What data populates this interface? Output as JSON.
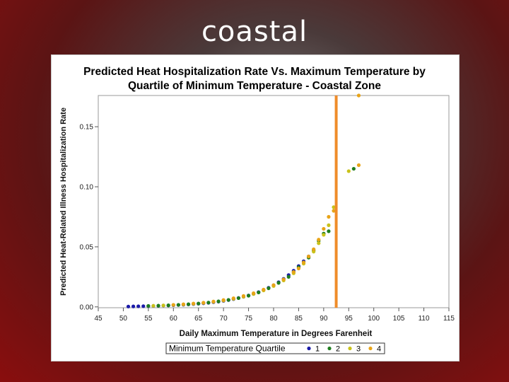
{
  "slide": {
    "title": "coastal"
  },
  "chart_data": {
    "type": "scatter",
    "title": "Predicted Heat Hospitalization Rate Vs. Maximum Temperature by Quartile of Minimum Temperature - Coastal Zone",
    "title_lines": [
      "Predicted Heat Hospitalization Rate Vs. Maximum Temperature by",
      "Quartile of Minimum Temperature - Coastal Zone"
    ],
    "xlabel": "Daily Maximum Temperature in Degrees Farenheit",
    "ylabel": "Predicted Heat-Related Illness Hospitalization Rate",
    "xlim": [
      45,
      115
    ],
    "ylim": [
      -0.0007,
      0.176
    ],
    "xticks": [
      45,
      50,
      55,
      60,
      65,
      70,
      75,
      80,
      85,
      90,
      95,
      100,
      105,
      110,
      115
    ],
    "yticks": [
      0.0,
      0.05,
      0.1,
      0.15
    ],
    "ytick_labels": [
      "0.00",
      "0.05",
      "0.10",
      "0.15"
    ],
    "reference_line": {
      "x": 92.5,
      "color": "#ef8c2a"
    },
    "legend": {
      "title": "Minimum Temperature Quartile",
      "position": "bottom"
    },
    "colors": {
      "1": "#1a1aa8",
      "2": "#1e7d1e",
      "3": "#c9c21a",
      "4": "#e8a418"
    },
    "series": [
      {
        "name": "1",
        "color": "#1a1aa8",
        "points": [
          [
            51,
            0.0003
          ],
          [
            52,
            0.0004
          ],
          [
            53,
            0.0005
          ],
          [
            54,
            0.0006
          ],
          [
            55,
            0.0007
          ],
          [
            56,
            0.0008
          ],
          [
            57,
            0.0009
          ],
          [
            58,
            0.0011
          ],
          [
            59,
            0.0012
          ],
          [
            60,
            0.0014
          ],
          [
            61,
            0.0016
          ],
          [
            62,
            0.0018
          ],
          [
            63,
            0.0021
          ],
          [
            64,
            0.0024
          ],
          [
            65,
            0.0027
          ],
          [
            66,
            0.003
          ],
          [
            67,
            0.0034
          ],
          [
            68,
            0.0039
          ],
          [
            69,
            0.0044
          ],
          [
            70,
            0.005
          ],
          [
            71,
            0.0057
          ],
          [
            72,
            0.0065
          ],
          [
            73,
            0.0074
          ],
          [
            74,
            0.0084
          ],
          [
            75,
            0.0095
          ],
          [
            76,
            0.0108
          ],
          [
            77,
            0.0123
          ],
          [
            78,
            0.014
          ],
          [
            79,
            0.0159
          ],
          [
            80,
            0.018
          ],
          [
            81,
            0.0205
          ],
          [
            82,
            0.0233
          ],
          [
            83,
            0.0265
          ],
          [
            84,
            0.0301
          ],
          [
            85,
            0.034
          ],
          [
            86,
            0.038
          ],
          [
            87,
            0.042
          ]
        ]
      },
      {
        "name": "2",
        "color": "#1e7d1e",
        "points": [
          [
            55,
            0.0008
          ],
          [
            57,
            0.001
          ],
          [
            59,
            0.0013
          ],
          [
            61,
            0.0017
          ],
          [
            63,
            0.0022
          ],
          [
            65,
            0.0028
          ],
          [
            67,
            0.0036
          ],
          [
            69,
            0.0046
          ],
          [
            71,
            0.0058
          ],
          [
            73,
            0.0073
          ],
          [
            75,
            0.0093
          ],
          [
            77,
            0.012
          ],
          [
            79,
            0.0155
          ],
          [
            81,
            0.02
          ],
          [
            83,
            0.025
          ],
          [
            84,
            0.029
          ],
          [
            85,
            0.033
          ],
          [
            86,
            0.037
          ],
          [
            87,
            0.041
          ],
          [
            88,
            0.047
          ],
          [
            89,
            0.055
          ],
          [
            90,
            0.061
          ],
          [
            91,
            0.063
          ],
          [
            96,
            0.115
          ]
        ]
      },
      {
        "name": "3",
        "color": "#c9c21a",
        "points": [
          [
            56,
            0.0009
          ],
          [
            58,
            0.0012
          ],
          [
            60,
            0.0016
          ],
          [
            62,
            0.002
          ],
          [
            64,
            0.0026
          ],
          [
            66,
            0.0033
          ],
          [
            68,
            0.0042
          ],
          [
            70,
            0.0053
          ],
          [
            72,
            0.0067
          ],
          [
            74,
            0.0085
          ],
          [
            76,
            0.0108
          ],
          [
            78,
            0.0137
          ],
          [
            80,
            0.0174
          ],
          [
            82,
            0.022
          ],
          [
            84,
            0.028
          ],
          [
            86,
            0.036
          ],
          [
            88,
            0.046
          ],
          [
            89,
            0.053
          ],
          [
            90,
            0.06
          ],
          [
            91,
            0.068
          ],
          [
            92,
            0.083
          ],
          [
            95,
            0.113
          ]
        ]
      },
      {
        "name": "4",
        "color": "#e8a418",
        "points": [
          [
            60,
            0.0017
          ],
          [
            62,
            0.0022
          ],
          [
            64,
            0.0028
          ],
          [
            66,
            0.0035
          ],
          [
            68,
            0.0045
          ],
          [
            70,
            0.0057
          ],
          [
            72,
            0.0072
          ],
          [
            74,
            0.0091
          ],
          [
            76,
            0.0114
          ],
          [
            78,
            0.0144
          ],
          [
            80,
            0.0181
          ],
          [
            82,
            0.0229
          ],
          [
            84,
            0.029
          ],
          [
            85,
            0.032
          ],
          [
            86,
            0.037
          ],
          [
            87,
            0.042
          ],
          [
            88,
            0.048
          ],
          [
            89,
            0.056
          ],
          [
            90,
            0.065
          ],
          [
            91,
            0.075
          ],
          [
            92,
            0.08
          ],
          [
            97,
            0.118
          ],
          [
            97,
            0.176
          ]
        ]
      }
    ]
  }
}
